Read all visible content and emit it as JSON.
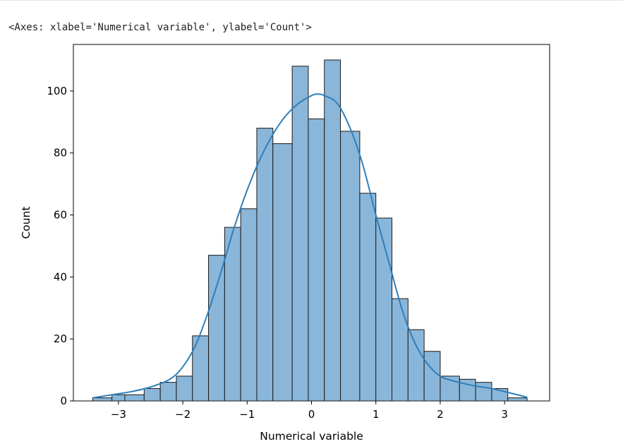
{
  "output": {
    "repr_text": "<Axes: xlabel='Numerical variable', ylabel='Count'>"
  },
  "chart_data": {
    "type": "bar",
    "title": "",
    "xlabel": "Numerical variable",
    "ylabel": "Count",
    "bin_edges": [
      -3.4,
      -3.1,
      -2.9,
      -2.6,
      -2.35,
      -2.1,
      -1.85,
      -1.6,
      -1.35,
      -1.1,
      -0.85,
      -0.6,
      -0.3,
      -0.05,
      0.2,
      0.45,
      0.75,
      1.0,
      1.25,
      1.5,
      1.75,
      2.0,
      2.3,
      2.55,
      2.8,
      3.05,
      3.35
    ],
    "counts": [
      1,
      2,
      2,
      4,
      6,
      8,
      21,
      47,
      56,
      62,
      88,
      83,
      108,
      91,
      110,
      87,
      67,
      59,
      33,
      23,
      16,
      8,
      7,
      6,
      4,
      1
    ],
    "kde": {
      "x": [
        -3.4,
        -3.1,
        -2.8,
        -2.5,
        -2.2,
        -2.0,
        -1.8,
        -1.6,
        -1.4,
        -1.2,
        -1.0,
        -0.8,
        -0.6,
        -0.4,
        -0.2,
        0.0,
        0.1,
        0.2,
        0.4,
        0.6,
        0.8,
        1.0,
        1.2,
        1.4,
        1.6,
        1.8,
        2.0,
        2.2,
        2.5,
        2.8,
        3.1,
        3.35
      ],
      "y": [
        1,
        2,
        3,
        4.5,
        7,
        11,
        18,
        29,
        42,
        56,
        68,
        78,
        86,
        92,
        96,
        98.5,
        99,
        98.5,
        96,
        88,
        76,
        60,
        45,
        30,
        19,
        12,
        8,
        6.5,
        5,
        4,
        2.5,
        1.2
      ]
    },
    "xlim": [
      -3.7,
      3.7
    ],
    "ylim": [
      0,
      115
    ],
    "xticks": [
      -3,
      -2,
      -1,
      0,
      1,
      2,
      3
    ],
    "xtick_labels": [
      "−3",
      "−2",
      "−1",
      "0",
      "1",
      "2",
      "3"
    ],
    "yticks": [
      0,
      20,
      40,
      60,
      80,
      100
    ],
    "ytick_labels": [
      "0",
      "20",
      "40",
      "60",
      "80",
      "100"
    ],
    "bar_color": "#8ab6d9",
    "bar_edge_color": "#1a1a1a",
    "line_color": "#2e7fba",
    "grid": false
  }
}
